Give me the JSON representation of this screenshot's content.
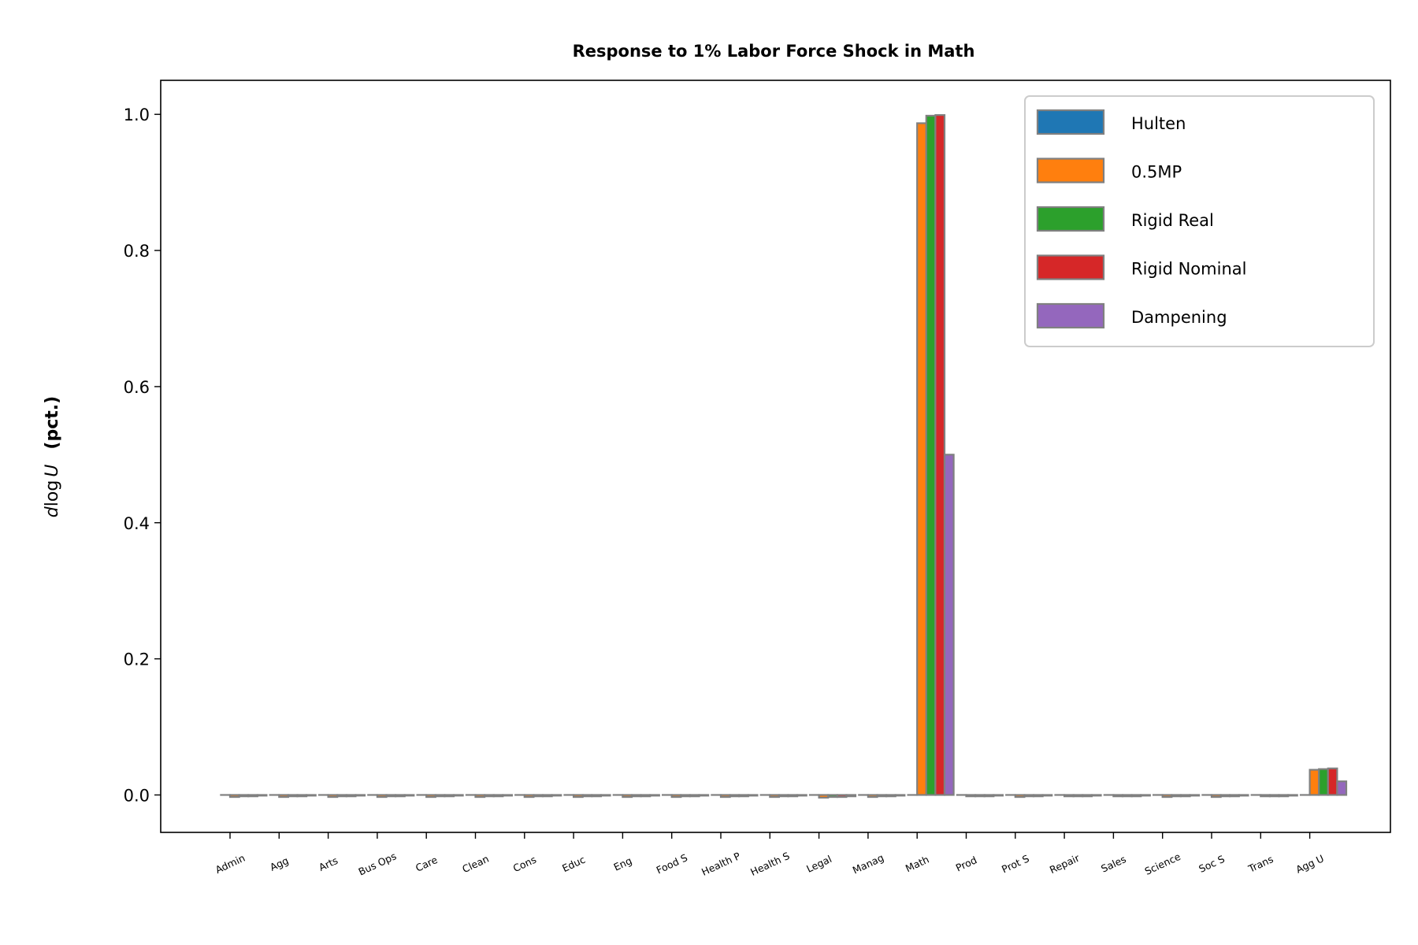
{
  "chart_data": {
    "type": "bar",
    "title": "Response to 1% Labor Force Shock in Math",
    "ylabel_math": "dlog U",
    "ylabel_text": "(pct.)",
    "xlabel": "",
    "ylim": [
      -0.055,
      1.05
    ],
    "yticks": [
      0.0,
      0.2,
      0.4,
      0.6,
      0.8,
      1.0
    ],
    "ytick_labels": [
      "0.0",
      "0.2",
      "0.4",
      "0.6",
      "0.8",
      "1.0"
    ],
    "grid": false,
    "legend_position": "top-right",
    "categories": [
      "Admin",
      "Agg",
      "Arts",
      "Bus Ops",
      "Care",
      "Clean",
      "Cons",
      "Educ",
      "Eng",
      "Food S",
      "Health P",
      "Health S",
      "Legal",
      "Manag",
      "Math",
      "Prod",
      "Prot S",
      "Repair",
      "Sales",
      "Science",
      "Soc S",
      "Trans",
      "Agg U"
    ],
    "series": [
      {
        "name": "Hulten",
        "color": "#1f77b4",
        "values": [
          0,
          0,
          0,
          0,
          0,
          0,
          0,
          0,
          0,
          0,
          0,
          0,
          0,
          0,
          0,
          0,
          0,
          0,
          0,
          0,
          0,
          0,
          0
        ]
      },
      {
        "name": "0.5MP",
        "color": "#ff7f0e",
        "values": [
          -0.003,
          -0.003,
          -0.003,
          -0.003,
          -0.003,
          -0.003,
          -0.003,
          -0.003,
          -0.003,
          -0.003,
          -0.003,
          -0.003,
          -0.004,
          -0.003,
          0.987,
          -0.002,
          -0.003,
          -0.002,
          -0.002,
          -0.003,
          -0.003,
          -0.002,
          0.037
        ]
      },
      {
        "name": "Rigid Real",
        "color": "#2ca02c",
        "values": [
          -0.002,
          -0.002,
          -0.002,
          -0.002,
          -0.002,
          -0.002,
          -0.002,
          -0.002,
          -0.002,
          -0.002,
          -0.002,
          -0.002,
          -0.003,
          -0.002,
          0.998,
          -0.002,
          -0.002,
          -0.002,
          -0.002,
          -0.002,
          -0.002,
          -0.002,
          0.038
        ]
      },
      {
        "name": "Rigid Nominal",
        "color": "#d62728",
        "values": [
          -0.002,
          -0.002,
          -0.002,
          -0.002,
          -0.002,
          -0.002,
          -0.002,
          -0.002,
          -0.002,
          -0.002,
          -0.002,
          -0.002,
          -0.003,
          -0.002,
          0.999,
          -0.002,
          -0.002,
          -0.002,
          -0.002,
          -0.002,
          -0.002,
          -0.002,
          0.039
        ]
      },
      {
        "name": "Dampening",
        "color": "#9467bd",
        "values": [
          -0.001,
          -0.001,
          -0.001,
          -0.001,
          -0.001,
          -0.001,
          -0.001,
          -0.001,
          -0.001,
          -0.001,
          -0.001,
          -0.001,
          -0.002,
          -0.001,
          0.5,
          -0.001,
          -0.001,
          -0.001,
          -0.001,
          -0.001,
          -0.001,
          -0.001,
          0.02
        ]
      }
    ],
    "bar_edge_color": "#808080"
  }
}
